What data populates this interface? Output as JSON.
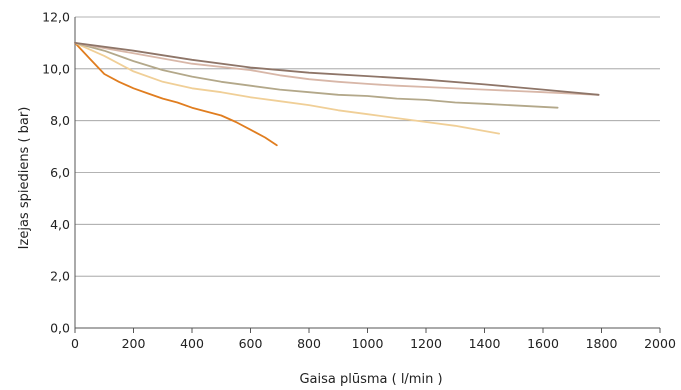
{
  "chart_data": {
    "type": "line",
    "title": "",
    "xlabel": "Gaisa plūsma ( l/min )",
    "ylabel": "Izejas spiediens ( bar)",
    "xlim": [
      0,
      2000
    ],
    "ylim": [
      0,
      12
    ],
    "x_ticks": [
      "0",
      "200",
      "400",
      "600",
      "800",
      "1000",
      "1200",
      "1400",
      "1600",
      "1800",
      "2000"
    ],
    "y_ticks": [
      "0,0",
      "2,0",
      "4,0",
      "6,0",
      "8,0",
      "10,0",
      "12,0"
    ],
    "grid": "horizontal",
    "legend": "none",
    "series": [
      {
        "color": "#e07d1f",
        "points": [
          [
            0,
            11.0
          ],
          [
            50,
            10.4
          ],
          [
            100,
            9.8
          ],
          [
            150,
            9.5
          ],
          [
            200,
            9.25
          ],
          [
            250,
            9.05
          ],
          [
            300,
            8.85
          ],
          [
            350,
            8.7
          ],
          [
            400,
            8.5
          ],
          [
            450,
            8.35
          ],
          [
            500,
            8.2
          ],
          [
            550,
            7.95
          ],
          [
            600,
            7.65
          ],
          [
            650,
            7.35
          ],
          [
            690,
            7.05
          ]
        ]
      },
      {
        "color": "#f0cf97",
        "points": [
          [
            0,
            11.0
          ],
          [
            100,
            10.5
          ],
          [
            200,
            9.9
          ],
          [
            300,
            9.5
          ],
          [
            400,
            9.25
          ],
          [
            500,
            9.1
          ],
          [
            600,
            8.9
          ],
          [
            700,
            8.75
          ],
          [
            800,
            8.6
          ],
          [
            900,
            8.4
          ],
          [
            1000,
            8.25
          ],
          [
            1100,
            8.1
          ],
          [
            1200,
            7.95
          ],
          [
            1300,
            7.8
          ],
          [
            1450,
            7.5
          ]
        ]
      },
      {
        "color": "#b3a88a",
        "points": [
          [
            0,
            11.0
          ],
          [
            100,
            10.7
          ],
          [
            200,
            10.3
          ],
          [
            300,
            9.95
          ],
          [
            400,
            9.7
          ],
          [
            500,
            9.5
          ],
          [
            600,
            9.35
          ],
          [
            700,
            9.2
          ],
          [
            800,
            9.1
          ],
          [
            900,
            9.0
          ],
          [
            1000,
            8.95
          ],
          [
            1100,
            8.85
          ],
          [
            1200,
            8.8
          ],
          [
            1300,
            8.7
          ],
          [
            1400,
            8.65
          ],
          [
            1650,
            8.5
          ]
        ]
      },
      {
        "color": "#d8b7a8",
        "points": [
          [
            0,
            11.0
          ],
          [
            200,
            10.6
          ],
          [
            400,
            10.2
          ],
          [
            600,
            9.95
          ],
          [
            700,
            9.75
          ],
          [
            800,
            9.6
          ],
          [
            900,
            9.5
          ],
          [
            1000,
            9.42
          ],
          [
            1100,
            9.35
          ],
          [
            1200,
            9.3
          ],
          [
            1400,
            9.2
          ],
          [
            1600,
            9.1
          ],
          [
            1790,
            9.0
          ]
        ]
      },
      {
        "color": "#8e7568",
        "points": [
          [
            0,
            11.0
          ],
          [
            200,
            10.7
          ],
          [
            400,
            10.35
          ],
          [
            600,
            10.05
          ],
          [
            800,
            9.85
          ],
          [
            1000,
            9.72
          ],
          [
            1200,
            9.58
          ],
          [
            1400,
            9.4
          ],
          [
            1600,
            9.2
          ],
          [
            1790,
            9.0
          ]
        ]
      }
    ]
  }
}
